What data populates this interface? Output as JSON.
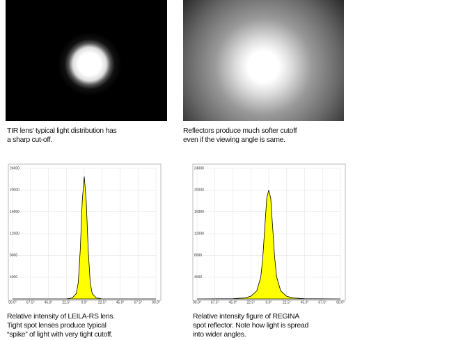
{
  "photos": [
    {
      "caption": [
        "TIR lens' typical light distribution has",
        "a sharp cut-off."
      ]
    },
    {
      "caption": [
        "Reflectors produce much softer cutoff",
        "even if the viewing angle is same."
      ]
    }
  ],
  "charts": [
    {
      "type": "area",
      "caption": [
        "Relative intensity of LEILA-RS lens.",
        "Tight spot lenses produce typical",
        "“spike” of light with very tight cutoff."
      ],
      "x": [
        -90,
        -45,
        -30,
        -22.5,
        -15,
        -10,
        -7.5,
        -5,
        -2.5,
        0,
        2.5,
        5,
        7.5,
        10,
        15,
        22.5,
        30,
        45,
        90
      ],
      "values": [
        0,
        0,
        0,
        0,
        200,
        1000,
        3000,
        9000,
        18000,
        22500,
        18000,
        9000,
        3000,
        1000,
        200,
        0,
        0,
        0,
        0
      ],
      "color": "#ffff00",
      "xlim": [
        -90,
        90
      ],
      "ylim": [
        0,
        24000
      ],
      "grid": true,
      "yticks": [
        4000,
        8000,
        12000,
        16000,
        20000,
        24000
      ],
      "xticks": [
        {
          "value": -90,
          "label": "90.0°"
        },
        {
          "value": -67.5,
          "label": "67.5°"
        },
        {
          "value": -45,
          "label": "45.0°"
        },
        {
          "value": -22.5,
          "label": "22.5°"
        },
        {
          "value": 0,
          "label": "0.0°"
        },
        {
          "value": 22.5,
          "label": "22.5°"
        },
        {
          "value": 45,
          "label": "45.0°"
        },
        {
          "value": 67.5,
          "label": "67.5°"
        },
        {
          "value": 90,
          "label": "90.0°"
        }
      ]
    },
    {
      "type": "area",
      "caption": [
        "Relative intensity figure of REGINA",
        "spot reflector. Note how light is spread",
        "into wider angles."
      ],
      "x": [
        -90,
        -45,
        -30,
        -22.5,
        -15,
        -10,
        -7.5,
        -5,
        -2.5,
        0,
        2.5,
        5,
        7.5,
        10,
        15,
        22.5,
        30,
        45,
        90
      ],
      "values": [
        0,
        50,
        200,
        500,
        1500,
        4000,
        7500,
        13000,
        18500,
        20000,
        18500,
        13000,
        7500,
        4000,
        1500,
        500,
        200,
        50,
        0
      ],
      "color": "#ffff00",
      "xlim": [
        -90,
        90
      ],
      "ylim": [
        0,
        24000
      ],
      "grid": true,
      "yticks": [
        4000,
        8000,
        12000,
        16000,
        20000,
        24000
      ],
      "xticks": [
        {
          "value": -90,
          "label": "90.0°"
        },
        {
          "value": -67.5,
          "label": "67.5°"
        },
        {
          "value": -45,
          "label": "45.0°"
        },
        {
          "value": -22.5,
          "label": "22.5°"
        },
        {
          "value": 0,
          "label": "0.0°"
        },
        {
          "value": 22.5,
          "label": "22.5°"
        },
        {
          "value": 45,
          "label": "45.0°"
        },
        {
          "value": 67.5,
          "label": "67.5°"
        },
        {
          "value": 90,
          "label": "90.0°"
        }
      ]
    }
  ]
}
